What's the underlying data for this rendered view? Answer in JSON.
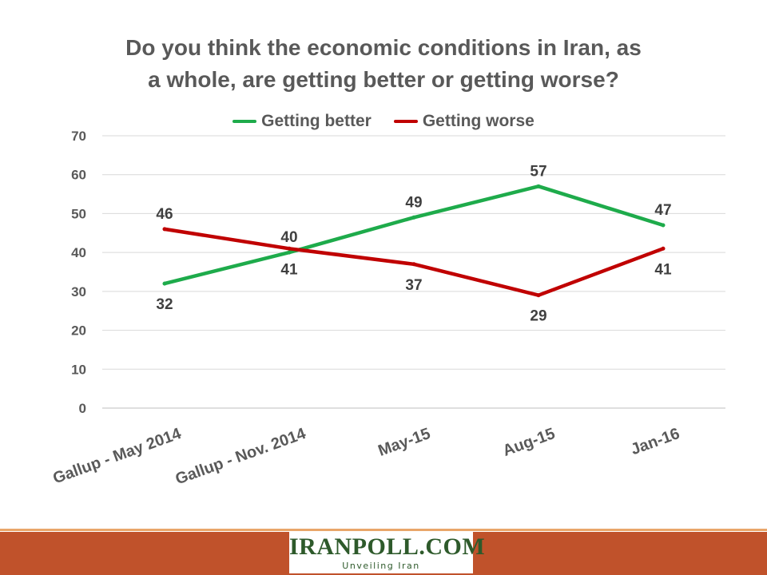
{
  "chart_data": {
    "type": "line",
    "title": "Do you think the economic conditions in Iran, as a whole, are getting better or getting worse?",
    "title_lines": [
      "Do you think the economic conditions in Iran, as",
      "a whole, are getting better or getting worse?"
    ],
    "categories": [
      "Gallup - May 2014",
      "Gallup - Nov. 2014",
      "May-15",
      "Aug-15",
      "Jan-16"
    ],
    "ylim": [
      0,
      70
    ],
    "yticks": [
      "0",
      "10",
      "20",
      "30",
      "40",
      "50",
      "60",
      "70"
    ],
    "grid": true,
    "legend_position": "top",
    "series": [
      {
        "name": "Getting better",
        "color": "#1eab4b",
        "values": [
          32,
          40,
          49,
          57,
          47
        ],
        "labels": [
          "32",
          "40",
          "49",
          "57",
          "47"
        ],
        "label_pos": [
          "below",
          "above",
          "above",
          "above",
          "above"
        ]
      },
      {
        "name": "Getting worse",
        "color": "#c00000",
        "values": [
          46,
          41,
          37,
          29,
          41
        ],
        "labels": [
          "46",
          "41",
          "37",
          "29",
          "41"
        ],
        "label_pos": [
          "above",
          "below",
          "below",
          "below",
          "below"
        ]
      }
    ]
  },
  "logo": {
    "name": "IRANPOLL.COM",
    "tagline": "Unveiling Iran"
  }
}
